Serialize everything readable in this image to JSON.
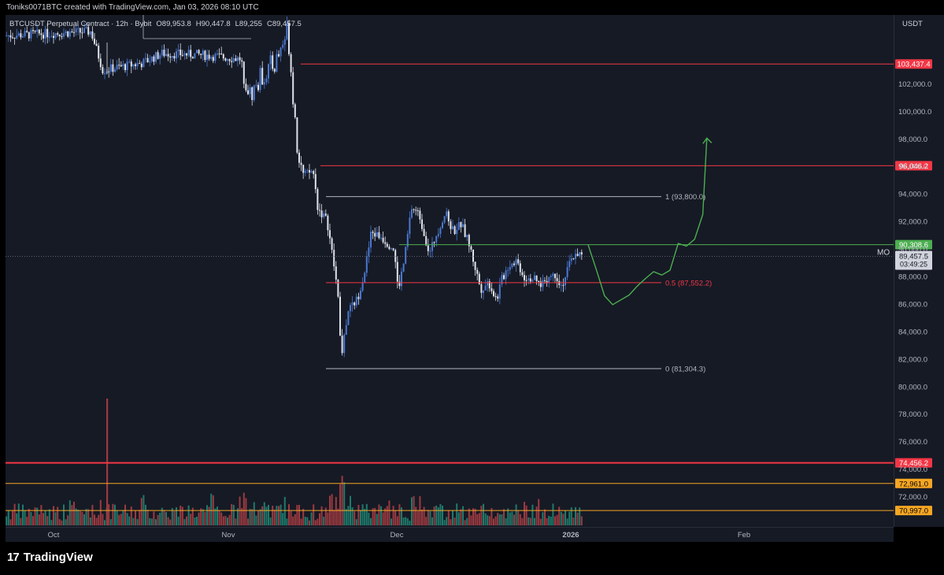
{
  "header": {
    "attribution": "Toniks0071BTC created with TradingView.com, Jan 03, 2026 08:10 UTC"
  },
  "symbol": {
    "name": "BTCUSDT Perpetual Contract · 12h · Bybit",
    "open": "O89,953.8",
    "high": "H90,447.8",
    "low": "L89,255",
    "close": "C89,457.5"
  },
  "axis": {
    "currency": "USDT",
    "mo_label": "MO",
    "countdown": "03:49:25"
  },
  "footer": {
    "brand": "TradingView",
    "logo_mark": "17"
  },
  "chart_data": {
    "type": "candlestick",
    "ylim": [
      69800,
      107000
    ],
    "yticks": [
      "102,000.0",
      "100,000.0",
      "98,000.0",
      "96,000.0",
      "94,000.0",
      "92,000.0",
      "90,000.0",
      "88,000.0",
      "86,000.0",
      "84,000.0",
      "82,000.0",
      "80,000.0",
      "78,000.0",
      "76,000.0",
      "74,000.0",
      "72,000.0"
    ],
    "xticks": [
      "Oct",
      "Nov",
      "Dec",
      "2026",
      "Feb"
    ],
    "horizontal_levels": [
      {
        "price": 103437.4,
        "label": "103,437.4",
        "color": "#f23645"
      },
      {
        "price": 96046.2,
        "label": "96,046.2",
        "color": "#f23645"
      },
      {
        "price": 90308.6,
        "label": "90,308.6",
        "color": "#4caf50"
      },
      {
        "price": 74456.2,
        "label": "74,456.2",
        "color": "#f23645"
      },
      {
        "price": 72961.0,
        "label": "72,961.0",
        "color": "#f5a623"
      },
      {
        "price": 70997.0,
        "label": "70,997.0",
        "color": "#f5a623"
      }
    ],
    "last_price": {
      "price": 89457.5,
      "label": "89,457.5"
    },
    "fibonacci": [
      {
        "level": "1",
        "price": 93800.0,
        "label": "1 (93,800.0)",
        "color": "#b2b5be"
      },
      {
        "level": "0.5",
        "price": 87552.2,
        "label": "0.5 (87,552.2)",
        "color": "#f23645"
      },
      {
        "level": "0",
        "price": 81304.3,
        "label": "0 (81,304.3)",
        "color": "#b2b5be"
      }
    ],
    "projection": {
      "color": "#4caf50",
      "points": [
        [
          0,
          90300
        ],
        [
          4,
          88500
        ],
        [
          8,
          86600
        ],
        [
          12,
          85950
        ],
        [
          16,
          86300
        ],
        [
          20,
          86650
        ],
        [
          24,
          87300
        ],
        [
          28,
          87850
        ],
        [
          32,
          88350
        ],
        [
          36,
          88100
        ],
        [
          40,
          88450
        ],
        [
          44,
          90400
        ],
        [
          48,
          90200
        ],
        [
          52,
          90700
        ],
        [
          56,
          92500
        ],
        [
          58,
          98050
        ]
      ]
    }
  }
}
